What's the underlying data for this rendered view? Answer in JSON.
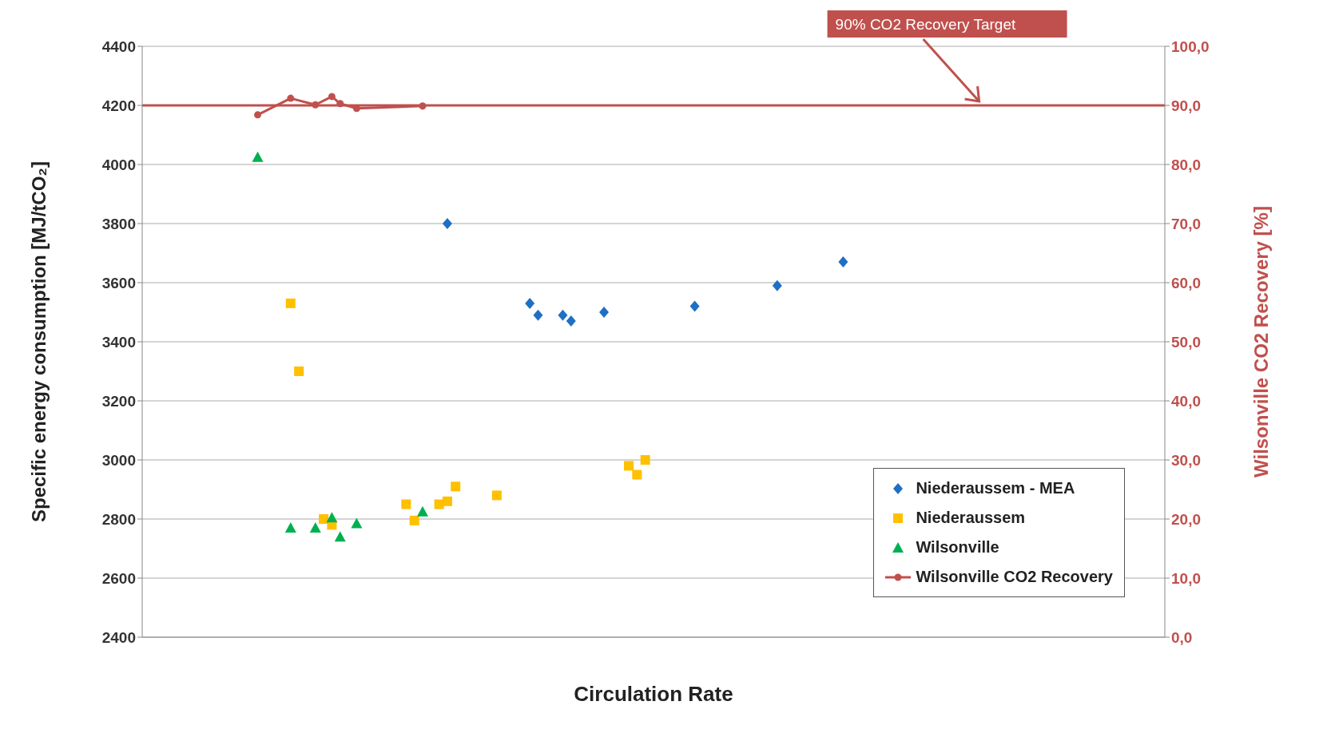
{
  "chart_data": {
    "type": "scatter",
    "xlabel": "Circulation Rate",
    "ylabel": "Specific energy consumption [MJ/tCO₂]",
    "y2label": "Wilsonville CO2 Recovery  [%]",
    "categories": [
      null,
      null,
      null,
      null,
      null,
      null,
      null,
      null,
      null,
      null,
      null,
      null,
      null,
      null,
      null,
      null,
      null,
      null,
      null,
      null,
      null,
      null,
      null,
      null,
      null,
      null,
      null,
      null,
      null,
      null,
      null,
      null,
      null,
      null,
      null,
      null,
      null,
      null,
      null,
      null,
      null,
      null,
      null,
      null,
      null,
      null,
      null,
      null,
      null,
      null,
      null,
      null,
      null,
      null,
      null,
      null,
      null,
      null,
      null,
      null,
      null,
      null,
      null,
      null,
      null,
      null,
      null,
      null,
      null,
      null,
      null,
      null,
      null,
      null,
      null,
      null,
      null,
      null,
      null,
      null,
      null,
      null,
      null,
      null,
      null,
      null,
      null,
      null,
      null,
      null,
      null,
      null,
      null,
      null,
      null,
      null,
      null,
      null,
      null,
      null,
      null,
      null,
      null,
      null,
      null,
      null,
      null,
      null,
      null,
      null,
      null,
      null,
      null,
      null,
      null,
      null,
      null,
      null,
      null,
      null,
      null,
      null,
      null,
      null,
      null
    ],
    "ylim": [
      2400,
      4400
    ],
    "yticks": [
      2400,
      2600,
      2800,
      3000,
      3200,
      3400,
      3600,
      3800,
      4000,
      4200,
      4400
    ],
    "y2lim": [
      0,
      100
    ],
    "y2ticks": [
      {
        "value": 0,
        "label": "0,0"
      },
      {
        "value": 10,
        "label": "10,0"
      },
      {
        "value": 20,
        "label": "20,0"
      },
      {
        "value": 30,
        "label": "30,0"
      },
      {
        "value": 40,
        "label": "40,0"
      },
      {
        "value": 50,
        "label": "50,0"
      },
      {
        "value": 60,
        "label": "60,0"
      },
      {
        "value": 70,
        "label": "70,0"
      },
      {
        "value": 80,
        "label": "80,0"
      },
      {
        "value": 90,
        "label": "90,0"
      },
      {
        "value": 100,
        "label": "100,0"
      }
    ],
    "grid": "y",
    "legend": "bottom right",
    "ref_lines": [
      {
        "axis": "y2",
        "value": 90,
        "label": "90% CO2 Recovery Target",
        "color": "#c0504d"
      }
    ],
    "series": [
      {
        "name": "Niederaussem - MEA",
        "color": "#1f6fc4",
        "marker": "diamond",
        "values": [
          null,
          null,
          null,
          null,
          null,
          null,
          null,
          null,
          null,
          null,
          null,
          null,
          null,
          null,
          null,
          null,
          null,
          null,
          null,
          null,
          null,
          null,
          null,
          null,
          null,
          null,
          null,
          null,
          null,
          null,
          null,
          null,
          null,
          null,
          null,
          null,
          null,
          3800,
          null,
          null,
          null,
          null,
          null,
          null,
          null,
          null,
          null,
          3530,
          3490,
          null,
          null,
          3490,
          3470,
          null,
          null,
          null,
          3500,
          null,
          null,
          null,
          null,
          null,
          null,
          null,
          null,
          null,
          null,
          3520,
          null,
          null,
          null,
          null,
          null,
          null,
          null,
          null,
          null,
          3590,
          null,
          null,
          null,
          null,
          null,
          null,
          null,
          3670,
          null,
          null,
          null,
          null,
          null,
          null,
          null,
          null,
          null,
          null,
          null,
          null,
          null,
          null,
          null,
          null,
          null,
          null,
          null,
          null,
          null,
          null,
          null,
          null,
          null,
          null,
          null,
          null,
          null,
          null,
          null,
          null,
          null,
          null,
          null,
          null,
          null,
          null,
          null
        ]
      },
      {
        "name": "Niederaussem",
        "color": "#ffc000",
        "marker": "square",
        "values": [
          null,
          null,
          null,
          null,
          null,
          null,
          null,
          null,
          null,
          null,
          null,
          null,
          null,
          null,
          null,
          null,
          null,
          null,
          3530,
          3300,
          null,
          null,
          2800,
          2780,
          null,
          null,
          null,
          null,
          null,
          null,
          null,
          null,
          2850,
          2795,
          null,
          null,
          2850,
          2860,
          2910,
          null,
          null,
          null,
          null,
          2880,
          null,
          null,
          null,
          null,
          null,
          null,
          null,
          null,
          null,
          null,
          null,
          null,
          null,
          null,
          null,
          2980,
          2950,
          3000,
          null,
          null,
          null,
          null,
          null,
          null,
          null,
          null,
          null,
          null,
          null,
          null,
          null,
          null,
          null,
          null,
          null,
          null,
          null,
          null,
          null,
          null,
          null,
          null,
          null,
          null,
          null,
          null,
          null,
          null,
          null,
          null,
          null,
          null,
          null,
          null,
          null,
          null,
          null,
          null,
          null,
          null,
          null,
          null,
          null,
          null,
          null,
          null,
          null,
          null,
          null,
          null,
          null,
          null,
          null,
          null,
          null,
          null,
          null,
          null,
          null,
          null,
          null
        ]
      },
      {
        "name": "Wilsonville",
        "color": "#00b050",
        "marker": "triangle",
        "values": [
          null,
          null,
          null,
          null,
          null,
          null,
          null,
          null,
          null,
          null,
          null,
          null,
          null,
          null,
          4025,
          null,
          null,
          null,
          2770,
          null,
          null,
          2770,
          null,
          2805,
          2740,
          null,
          2785,
          null,
          null,
          null,
          null,
          null,
          null,
          null,
          2825,
          null,
          null,
          null,
          null,
          null,
          null,
          null,
          null,
          null,
          null,
          null,
          null,
          null,
          null,
          null,
          null,
          null,
          null,
          null,
          null,
          null,
          null,
          null,
          null,
          null,
          null,
          null,
          null,
          null,
          null,
          null,
          null,
          null,
          null,
          null,
          null,
          null,
          null,
          null,
          null,
          null,
          null,
          null,
          null,
          null,
          null,
          null,
          null,
          null,
          null,
          null,
          null,
          null,
          null,
          null,
          null,
          null,
          null,
          null,
          null,
          null,
          null,
          null,
          null,
          null,
          null,
          null,
          null,
          null,
          null,
          null,
          null,
          null,
          null,
          null,
          null,
          null,
          null,
          null,
          null,
          null,
          null,
          null,
          null,
          null,
          null,
          null,
          null,
          null,
          null
        ]
      },
      {
        "name": "Wilsonville CO2 Recovery",
        "type": "line",
        "axis": "y2",
        "color": "#c0504d",
        "marker": "circle",
        "values": [
          null,
          null,
          null,
          null,
          null,
          null,
          null,
          null,
          null,
          null,
          null,
          null,
          null,
          null,
          88.4,
          null,
          null,
          null,
          91.2,
          null,
          null,
          90.1,
          null,
          91.5,
          90.3,
          null,
          89.5,
          null,
          null,
          null,
          null,
          null,
          null,
          null,
          89.9,
          null,
          null,
          null,
          null,
          null,
          null,
          null,
          null,
          null,
          null,
          null,
          null,
          null,
          null,
          null,
          null,
          null,
          null,
          null,
          null,
          null,
          null,
          null,
          null,
          null,
          null,
          null,
          null,
          null,
          null,
          null,
          null,
          null,
          null,
          null,
          null,
          null,
          null,
          null,
          null,
          null,
          null,
          null,
          null,
          null,
          null,
          null,
          null,
          null,
          null,
          null,
          null,
          null,
          null,
          null,
          null,
          null,
          null,
          null,
          null,
          null,
          null,
          null,
          null,
          null,
          null,
          null,
          null,
          null,
          null,
          null,
          null,
          null,
          null,
          null,
          null,
          null,
          null,
          null,
          null,
          null,
          null,
          null,
          null,
          null,
          null,
          null,
          null,
          null,
          null
        ]
      }
    ]
  }
}
